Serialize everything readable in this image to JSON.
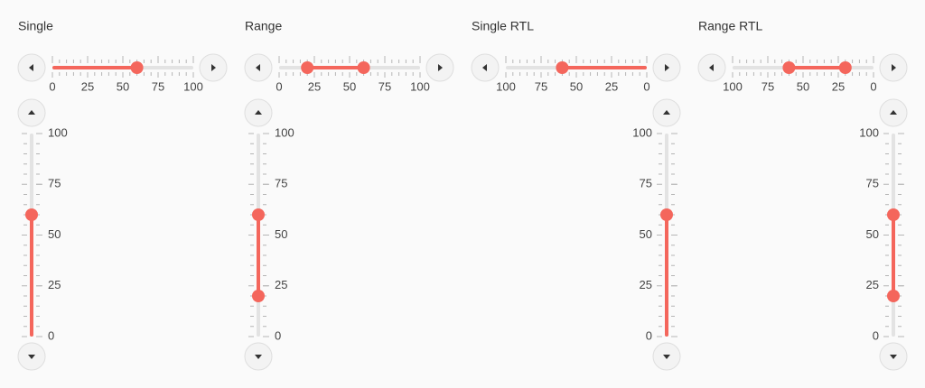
{
  "panels": [
    {
      "title": "Single",
      "horizontal": {
        "rtl": false,
        "ticks": [
          0,
          25,
          50,
          75,
          100
        ],
        "values": [
          60
        ]
      },
      "vertical": {
        "rtl": false,
        "ticks": [
          0,
          25,
          50,
          75,
          100
        ],
        "values": [
          60
        ]
      }
    },
    {
      "title": "Range",
      "horizontal": {
        "rtl": false,
        "ticks": [
          0,
          25,
          50,
          75,
          100
        ],
        "values": [
          20,
          60
        ]
      },
      "vertical": {
        "rtl": false,
        "ticks": [
          0,
          25,
          50,
          75,
          100
        ],
        "values": [
          20,
          60
        ]
      }
    },
    {
      "title": "Single RTL",
      "horizontal": {
        "rtl": true,
        "ticks": [
          0,
          25,
          50,
          75,
          100
        ],
        "values": [
          60
        ]
      },
      "vertical": {
        "rtl": true,
        "ticks": [
          0,
          25,
          50,
          75,
          100
        ],
        "values": [
          60
        ]
      }
    },
    {
      "title": "Range RTL",
      "horizontal": {
        "rtl": true,
        "ticks": [
          0,
          25,
          50,
          75,
          100
        ],
        "values": [
          20,
          60
        ]
      },
      "vertical": {
        "rtl": true,
        "ticks": [
          0,
          25,
          50,
          75,
          100
        ],
        "values": [
          20,
          60
        ]
      }
    }
  ]
}
